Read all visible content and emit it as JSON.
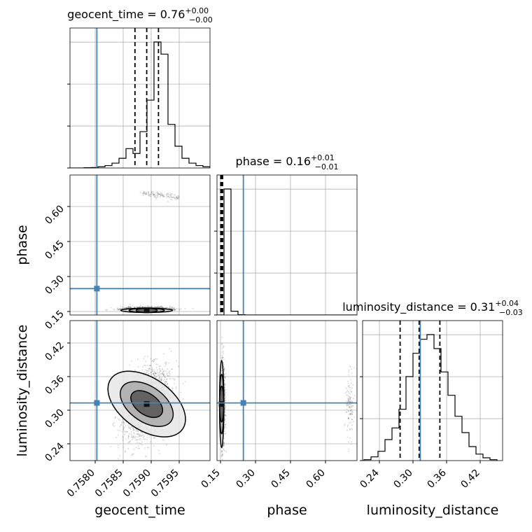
{
  "chart_data": {
    "type": "scatter",
    "subtype": "corner-plot",
    "parameters": [
      "geocent_time",
      "phase",
      "luminosity_distance"
    ],
    "truths": {
      "geocent_time": 0.75803,
      "phase": 0.248,
      "luminosity_distance": 0.313
    },
    "titles": {
      "geocent_time": {
        "label": "geocent_time = 0.76",
        "sup": "+0.00",
        "sub": "−0.00"
      },
      "phase": {
        "label": "phase = 0.16",
        "sup": "+0.01",
        "sub": "−0.01"
      },
      "luminosity_distance": {
        "label": "luminosity_distance = 0.31",
        "sup": "+0.04",
        "sub": "−0.03"
      }
    },
    "axes_labels": {
      "geocent_time": "geocent_time",
      "phase": "phase",
      "luminosity_distance": "luminosity_distance"
    },
    "ranges": {
      "geocent_time": [
        0.75755,
        0.76005
      ],
      "phase": [
        0.135,
        0.735
      ],
      "luminosity_distance": [
        0.21,
        0.46
      ]
    },
    "ticks": {
      "geocent_time": {
        "values": [
          0.758,
          0.7585,
          0.759,
          0.7595
        ],
        "labels": [
          "0.7580",
          "0.7585",
          "0.7590",
          "0.7595"
        ]
      },
      "phase": {
        "values": [
          0.15,
          0.3,
          0.45,
          0.6
        ],
        "labels": [
          "0.15",
          "0.30",
          "0.45",
          "0.60"
        ]
      },
      "luminosity_distance": {
        "values": [
          0.24,
          0.3,
          0.36,
          0.42
        ],
        "labels": [
          "0.24",
          "0.30",
          "0.36",
          "0.42"
        ]
      }
    },
    "quantiles": {
      "geocent_time": [
        0.75871,
        0.75892,
        0.75913
      ],
      "phase": [
        0.151,
        0.155,
        0.159
      ],
      "luminosity_distance": [
        0.277,
        0.311,
        0.348
      ]
    },
    "hist": {
      "geocent_time": {
        "edges_start": 0.75755,
        "bin_width": 0.000125,
        "counts": [
          0,
          0,
          1,
          2,
          5,
          10,
          20,
          40,
          80,
          60,
          150,
          280,
          520,
          470,
          180,
          90,
          40,
          20,
          10,
          5
        ]
      },
      "phase": {
        "edges_start": 0.135,
        "bin_width": 0.03,
        "counts": [
          0,
          1000,
          30,
          2,
          0,
          0,
          0,
          0,
          0,
          0,
          0,
          0,
          0,
          0,
          0,
          0,
          0,
          0,
          0,
          0
        ]
      },
      "luminosity_distance": {
        "edges_start": 0.2,
        "bin_width": 0.0125,
        "counts": [
          0,
          2,
          8,
          20,
          45,
          70,
          110,
          180,
          230,
          260,
          270,
          240,
          190,
          140,
          95,
          60,
          30,
          14,
          6,
          2
        ]
      }
    },
    "grid": true
  }
}
